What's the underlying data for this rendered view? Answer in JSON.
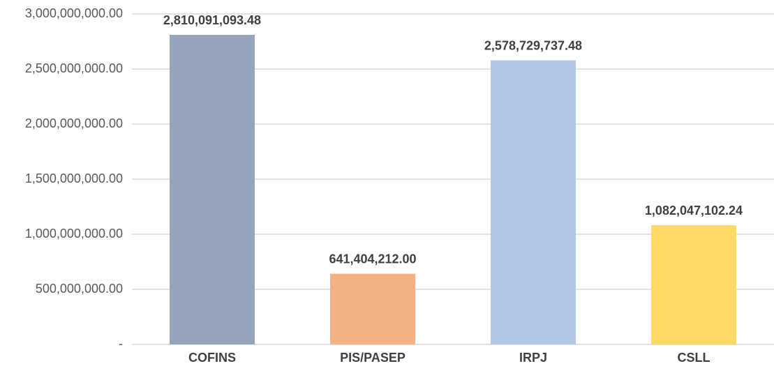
{
  "chart_data": {
    "type": "bar",
    "categories": [
      "COFINS",
      "PIS/PASEP",
      "IRPJ",
      "CSLL"
    ],
    "values": [
      2810091093.48,
      641404212.0,
      2578729737.48,
      1082047102.24
    ],
    "value_labels": [
      "2,810,091,093.48",
      "641,404,212.00",
      "2,578,729,737.48",
      "1,082,047,102.24"
    ],
    "colors": [
      "#95a3bb",
      "#f2b183",
      "#b2c6e6",
      "#ffd966"
    ],
    "ylim": [
      0,
      3000000000
    ],
    "yticks": [
      {
        "value": 0,
        "label": "-"
      },
      {
        "value": 500000000,
        "label": "500,000,000.00"
      },
      {
        "value": 1000000000,
        "label": "1,000,000,000.00"
      },
      {
        "value": 1500000000,
        "label": "1,500,000,000.00"
      },
      {
        "value": 2000000000,
        "label": "2,000,000,000.00"
      },
      {
        "value": 2500000000,
        "label": "2,500,000,000.00"
      },
      {
        "value": 3000000000,
        "label": "3,000,000,000.00"
      }
    ],
    "grid": true
  }
}
